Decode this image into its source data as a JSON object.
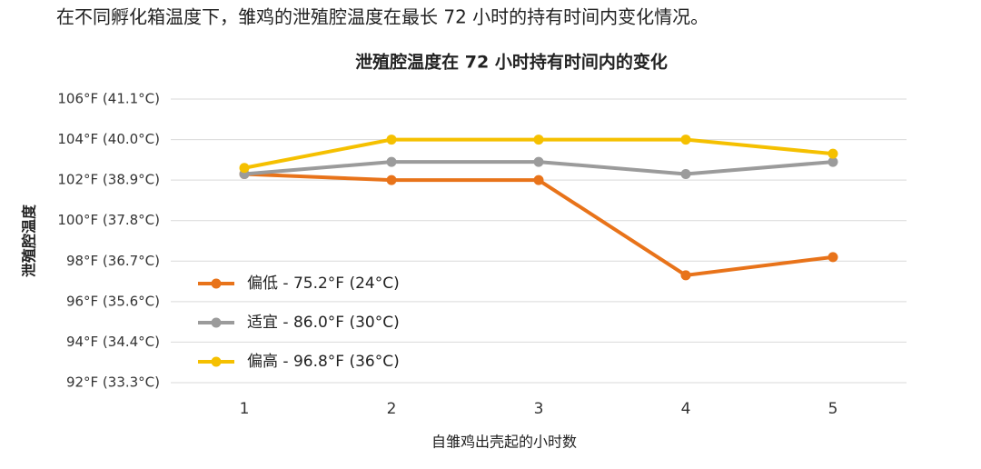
{
  "caption": "在不同孵化箱温度下，雏鸡的泄殖腔温度在最长 72 小时的持有时间内变化情况。",
  "chart_data": {
    "type": "line",
    "title": "泄殖腔温度在 72 小时持有时间内的变化",
    "x_label": "自雏鸡出壳起的小时数",
    "y_label": "泄殖腔温度",
    "categories": [
      "1",
      "2",
      "3",
      "4",
      "5"
    ],
    "series": [
      {
        "name": "偏低 - 75.2°F (24°C)",
        "color": "#e8731a",
        "values": [
          102.3,
          102.0,
          102.0,
          97.3,
          98.2
        ]
      },
      {
        "name": "适宜 - 86.0°F (30°C)",
        "color": "#9b9b9b",
        "values": [
          102.3,
          102.9,
          102.9,
          102.3,
          102.9
        ]
      },
      {
        "name": "偏高 - 96.8°F (36°C)",
        "color": "#f5c000",
        "values": [
          102.6,
          104.0,
          104.0,
          104.0,
          103.3
        ]
      }
    ],
    "ylim": [
      92,
      106
    ],
    "yticks": [
      {
        "value": 92,
        "label": "92°F (33.3°C)"
      },
      {
        "value": 94,
        "label": "94°F (34.4°C)"
      },
      {
        "value": 96,
        "label": "96°F (35.6°C)"
      },
      {
        "value": 98,
        "label": "98°F (36.7°C)"
      },
      {
        "value": 100,
        "label": "100°F (37.8°C)"
      },
      {
        "value": 102,
        "label": "102°F (38.9°C)"
      },
      {
        "value": 104,
        "label": "104°F (40.0°C)"
      },
      {
        "value": 106,
        "label": "106°F (41.1°C)"
      }
    ],
    "grid": true,
    "legend": "left"
  }
}
